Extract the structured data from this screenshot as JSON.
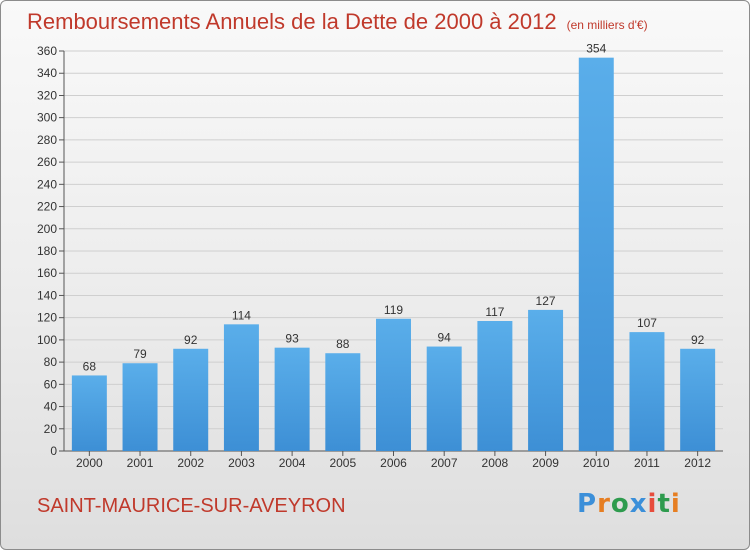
{
  "title": "Remboursements Annuels de la Dette de 2000 à 2012",
  "unit": "(en milliers d'€)",
  "location": "SAINT-MAURICE-SUR-AVEYRON",
  "logo": {
    "text": "Proxiti",
    "letter_colors": [
      "#3b8fd9",
      "#e67e22",
      "#2e9b4e",
      "#3b8fd9",
      "#e74c3c",
      "#2e9b4e",
      "#e67e22"
    ]
  },
  "colors": {
    "bar": "#3d8fd5",
    "bar_light": "#5aaeea",
    "accent": "#c0392b",
    "grid": "#cfcfcf"
  },
  "chart_data": {
    "type": "bar",
    "categories": [
      "2000",
      "2001",
      "2002",
      "2003",
      "2004",
      "2005",
      "2006",
      "2007",
      "2008",
      "2009",
      "2010",
      "2011",
      "2012"
    ],
    "values": [
      68,
      79,
      92,
      114,
      93,
      88,
      119,
      94,
      117,
      127,
      354,
      107,
      92
    ],
    "ylim": [
      0,
      360
    ],
    "yticks": [
      0,
      20,
      40,
      60,
      80,
      100,
      120,
      140,
      160,
      180,
      200,
      220,
      240,
      260,
      280,
      300,
      320,
      340,
      360
    ],
    "grid": true,
    "xlabel": "",
    "ylabel": ""
  }
}
